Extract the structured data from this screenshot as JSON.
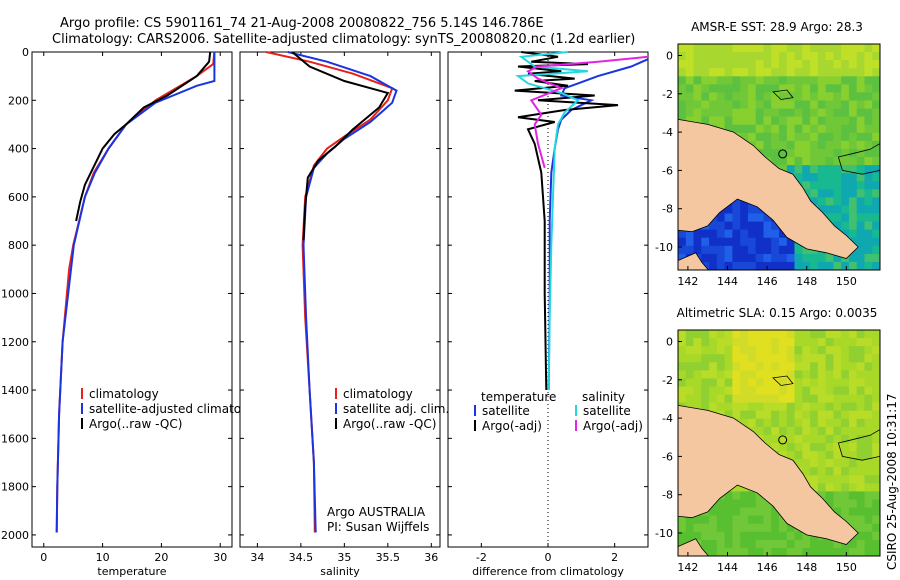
{
  "title_line1": "Argo profile: CS 5901161_74 21-Aug-2008 20080822_756 5.14S 146.786E",
  "title_line2": "Climatology: CARS2006. Satellite-adjusted climatology: synTS_20080820.nc (1.2d earlier)",
  "colors": {
    "climatology": "#e8201c",
    "satellite": "#1a35e0",
    "argo": "#000000",
    "sal_sat": "#22d7e0",
    "sal_argo": "#e424e4",
    "land": "#f5c7a0"
  },
  "chart_data": [
    {
      "type": "line",
      "xlabel": "temperature",
      "xlim": [
        -2,
        32
      ],
      "ylim": [
        0,
        2050
      ],
      "xticks": [
        {
          "v": 0,
          "label": "0"
        },
        {
          "v": 10,
          "label": "10"
        },
        {
          "v": 20,
          "label": "20"
        },
        {
          "v": 30,
          "label": "30"
        }
      ],
      "yticks": [
        {
          "v": 0,
          "label": "0"
        },
        {
          "v": 200,
          "label": "200"
        },
        {
          "v": 400,
          "label": "400"
        },
        {
          "v": 600,
          "label": "600"
        },
        {
          "v": 800,
          "label": "800"
        },
        {
          "v": 1000,
          "label": "1000"
        },
        {
          "v": 1200,
          "label": "1200"
        },
        {
          "v": 1400,
          "label": "1400"
        },
        {
          "v": 1600,
          "label": "1600"
        },
        {
          "v": 1800,
          "label": "1800"
        },
        {
          "v": 2000,
          "label": "2000"
        }
      ],
      "legend": [
        "climatology",
        "satellite-adjusted climatology",
        "Argo(..raw -QC)"
      ],
      "series": [
        {
          "name": "climatology",
          "color": "#e8201c",
          "x": [
            29,
            28.8,
            26,
            19,
            14,
            11,
            8.5,
            7,
            6,
            5,
            4.3,
            3.2,
            2.6,
            2.3,
            2.2
          ],
          "y": [
            0,
            50,
            100,
            200,
            300,
            400,
            500,
            600,
            700,
            800,
            900,
            1200,
            1500,
            1800,
            1990
          ]
        },
        {
          "name": "satellite",
          "color": "#1a35e0",
          "x": [
            29,
            29,
            29,
            26,
            19,
            14,
            11,
            8.7,
            7,
            5.1,
            3.2,
            2.6,
            2.3,
            2.2
          ],
          "y": [
            0,
            50,
            120,
            140,
            210,
            300,
            400,
            500,
            600,
            800,
            1200,
            1500,
            1800,
            1990
          ]
        },
        {
          "name": "argo",
          "color": "#000000",
          "x": [
            28.3,
            28.1,
            26,
            21,
            17,
            14,
            12,
            10,
            9,
            8,
            7,
            6.2,
            5.5
          ],
          "y": [
            0,
            40,
            100,
            180,
            230,
            300,
            340,
            400,
            450,
            500,
            550,
            620,
            700
          ]
        }
      ]
    },
    {
      "type": "line",
      "xlabel": "salinity",
      "xlim": [
        33.8,
        36.1
      ],
      "ylim": [
        0,
        2050
      ],
      "xticks": [
        {
          "v": 34,
          "label": "34"
        },
        {
          "v": 34.5,
          "label": "34.5"
        },
        {
          "v": 35,
          "label": "35"
        },
        {
          "v": 35.5,
          "label": "35.5"
        },
        {
          "v": 36,
          "label": "36"
        }
      ],
      "legend": [
        "climatology",
        "satellite adj. clim.",
        "Argo(..raw -QC)"
      ],
      "annotation": [
        "Argo AUSTRALIA",
        "PI: Susan Wijffels"
      ],
      "series": [
        {
          "name": "climatology",
          "color": "#e8201c",
          "x": [
            34.1,
            34.6,
            35.1,
            35.55,
            35.5,
            35.3,
            35.0,
            34.8,
            34.65,
            34.55,
            34.52,
            34.55,
            34.6,
            34.65,
            34.66
          ],
          "y": [
            0,
            40,
            90,
            150,
            200,
            280,
            350,
            400,
            470,
            600,
            800,
            1100,
            1400,
            1700,
            1990
          ]
        },
        {
          "name": "satellite",
          "color": "#1a35e0",
          "x": [
            34.35,
            34.8,
            35.3,
            35.6,
            35.55,
            35.3,
            35.0,
            34.8,
            34.65,
            34.56,
            34.53,
            34.56,
            34.6,
            34.65,
            34.67
          ],
          "y": [
            0,
            40,
            100,
            160,
            210,
            290,
            360,
            420,
            480,
            600,
            800,
            1100,
            1400,
            1700,
            1990
          ]
        },
        {
          "name": "argo",
          "color": "#000000",
          "x": [
            34.4,
            34.6,
            35.0,
            35.5,
            35.4,
            35.1,
            34.9,
            34.7,
            34.58,
            34.55,
            34.53
          ],
          "y": [
            0,
            60,
            120,
            170,
            230,
            320,
            390,
            450,
            520,
            640,
            780
          ]
        }
      ]
    },
    {
      "type": "line",
      "xlabel": "difference from climatology",
      "xlim": [
        -3.0,
        3.0
      ],
      "ylim": [
        0,
        2050
      ],
      "xticks": [
        {
          "v": -2,
          "label": "-2"
        },
        {
          "v": 0,
          "label": "0"
        },
        {
          "v": 2,
          "label": "2"
        }
      ],
      "legend_headers": [
        "temperature",
        "salinity"
      ],
      "legend": [
        "satellite",
        "Argo(-adj)",
        "satellite",
        "Argo(-adj)"
      ],
      "series": [
        {
          "name": "temp satellite",
          "color": "#1a35e0",
          "x": [
            3,
            2.5,
            1.5,
            0.9,
            0.5,
            0.4,
            1.3,
            0.7,
            0.4,
            0.3,
            0.2,
            0.1,
            0.05,
            0.05,
            0.02
          ],
          "y": [
            30,
            60,
            100,
            130,
            150,
            180,
            200,
            240,
            280,
            320,
            400,
            500,
            700,
            1000,
            1400
          ]
        },
        {
          "name": "temp argo",
          "color": "#000000",
          "x": [
            -0.8,
            0.3,
            -0.5,
            1.2,
            -0.9,
            0.4,
            -0.6,
            0.8,
            -0.4,
            0.6,
            -1.0,
            1.4,
            -0.3,
            2.1,
            0.5,
            -0.9,
            0.2,
            -0.6,
            -0.4,
            -0.2,
            -0.1,
            -0.1,
            -0.05
          ],
          "y": [
            0,
            20,
            40,
            50,
            60,
            80,
            90,
            110,
            120,
            140,
            160,
            180,
            200,
            220,
            240,
            270,
            290,
            320,
            380,
            500,
            700,
            1000,
            1400
          ]
        },
        {
          "name": "sal satellite",
          "color": "#22d7e0",
          "x": [
            0.6,
            -0.8,
            -0.4,
            1.2,
            -0.9,
            -0.6,
            0.4,
            0.9,
            0.5,
            0.3,
            0.2,
            0.15,
            0.1,
            0.05,
            0.02
          ],
          "y": [
            0,
            20,
            60,
            80,
            100,
            130,
            170,
            200,
            250,
            300,
            400,
            600,
            800,
            1100,
            1400
          ]
        },
        {
          "name": "sal argo",
          "color": "#e424e4",
          "x": [
            3,
            1.5,
            -0.3,
            -0.6,
            -0.3,
            0.4,
            -0.5,
            -0.2,
            -0.4,
            -0.3,
            -0.1
          ],
          "y": [
            20,
            40,
            60,
            80,
            110,
            150,
            200,
            260,
            300,
            380,
            480
          ]
        }
      ]
    }
  ],
  "maps": [
    {
      "title": "AMSR-E SST: 28.9 Argo: 28.3",
      "xticks": [
        {
          "v": 142,
          "label": "142"
        },
        {
          "v": 144,
          "label": "144"
        },
        {
          "v": 146,
          "label": "146"
        },
        {
          "v": 148,
          "label": "148"
        },
        {
          "v": 150,
          "label": "150"
        }
      ],
      "yticks": [
        {
          "v": 0,
          "label": "0"
        },
        {
          "v": -2,
          "label": "-2"
        },
        {
          "v": -4,
          "label": "-4"
        },
        {
          "v": -6,
          "label": "-6"
        },
        {
          "v": -8,
          "label": "-8"
        },
        {
          "v": -10,
          "label": "-10"
        }
      ],
      "xlim": [
        141.5,
        151.7
      ],
      "ylim": [
        -11.2,
        0.6
      ],
      "marker": {
        "lon": 146.786,
        "lat": -5.14
      }
    },
    {
      "title": "Altimetric SLA: 0.15 Argo: 0.0035",
      "xticks": [
        {
          "v": 142,
          "label": "142"
        },
        {
          "v": 144,
          "label": "144"
        },
        {
          "v": 146,
          "label": "146"
        },
        {
          "v": 148,
          "label": "148"
        },
        {
          "v": 150,
          "label": "150"
        }
      ],
      "yticks": [
        {
          "v": 0,
          "label": "0"
        },
        {
          "v": -2,
          "label": "-2"
        },
        {
          "v": -4,
          "label": "-4"
        },
        {
          "v": -6,
          "label": "-6"
        },
        {
          "v": -8,
          "label": "-8"
        },
        {
          "v": -10,
          "label": "-10"
        }
      ],
      "xlim": [
        141.5,
        151.7
      ],
      "ylim": [
        -11.2,
        0.6
      ],
      "marker": {
        "lon": 146.786,
        "lat": -5.14
      }
    }
  ],
  "credit": "CSIRO 25-Aug-2008 10:31:17"
}
